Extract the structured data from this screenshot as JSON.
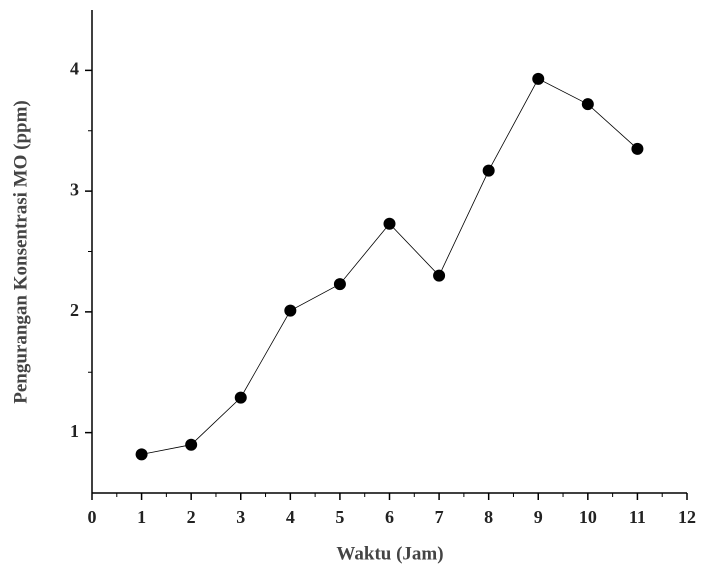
{
  "chart_data": {
    "type": "line",
    "x_label": "Waktu (Jam)",
    "y_label": "Pengurangan Konsentrasi MO (ppm)",
    "x": [
      1,
      2,
      3,
      4,
      5,
      6,
      7,
      8,
      9,
      10,
      11
    ],
    "series": [
      {
        "color": "#000000",
        "values": [
          0.82,
          0.9,
          1.29,
          2.01,
          2.23,
          2.73,
          2.3,
          3.17,
          3.93,
          3.72,
          3.35
        ]
      }
    ],
    "xlim": [
      0,
      12
    ],
    "xticks": [
      0,
      1,
      2,
      3,
      4,
      5,
      6,
      7,
      8,
      9,
      10,
      11,
      12
    ],
    "ylim": [
      0.5,
      4.5
    ],
    "yticks": [
      1,
      2,
      3,
      4
    ],
    "grid": false
  }
}
